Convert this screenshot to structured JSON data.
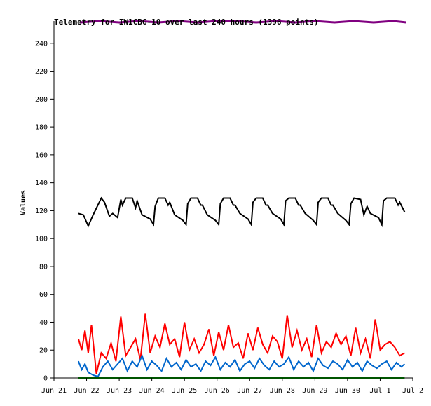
{
  "chart_data": {
    "type": "line",
    "title": "Telemetry for IW1CBG-10 over last 240 hours (1396 points)",
    "xlabel": "",
    "ylabel": "Values",
    "ylim": [
      0,
      256
    ],
    "yticks": [
      0,
      20,
      40,
      60,
      80,
      100,
      120,
      140,
      160,
      180,
      200,
      220,
      240
    ],
    "xlim": [
      0,
      11
    ],
    "xticks": [
      {
        "x": 0,
        "label": "Jun 21"
      },
      {
        "x": 1,
        "label": "Jun 22"
      },
      {
        "x": 2,
        "label": "Jun 23"
      },
      {
        "x": 3,
        "label": "Jun 24"
      },
      {
        "x": 4,
        "label": "Jun 25"
      },
      {
        "x": 5,
        "label": "Jun 26"
      },
      {
        "x": 6,
        "label": "Jun 27"
      },
      {
        "x": 7,
        "label": "Jun 28"
      },
      {
        "x": 8,
        "label": "Jun 29"
      },
      {
        "x": 9,
        "label": "Jun 30"
      },
      {
        "x": 10,
        "label": "Jul 1"
      },
      {
        "x": 11,
        "label": "Jul 2"
      }
    ],
    "grid": false,
    "series": [
      {
        "color": "#800080",
        "x": [
          0.8,
          1.4,
          2.0,
          2.6,
          3.2,
          3.8,
          4.4,
          5.0,
          5.6,
          6.2,
          6.8,
          7.4,
          8.0,
          8.6,
          9.2,
          9.8,
          10.4,
          10.8
        ],
        "values": [
          255,
          256,
          255,
          256,
          255,
          256,
          255,
          256,
          256,
          255,
          256,
          255,
          256,
          255,
          256,
          255,
          256,
          255
        ]
      },
      {
        "color": "#000000",
        "x": [
          0.75,
          0.9,
          1.05,
          1.2,
          1.45,
          1.55,
          1.7,
          1.8,
          1.95,
          2.05,
          2.1,
          2.2,
          2.4,
          2.5,
          2.55,
          2.7,
          2.95,
          3.05,
          3.1,
          3.2,
          3.4,
          3.5,
          3.55,
          3.7,
          3.95,
          4.05,
          4.1,
          4.2,
          4.4,
          4.5,
          4.55,
          4.7,
          4.95,
          5.05,
          5.1,
          5.2,
          5.4,
          5.5,
          5.55,
          5.7,
          5.95,
          6.05,
          6.1,
          6.2,
          6.4,
          6.5,
          6.55,
          6.7,
          6.95,
          7.05,
          7.1,
          7.2,
          7.4,
          7.5,
          7.55,
          7.7,
          7.95,
          8.05,
          8.1,
          8.2,
          8.4,
          8.5,
          8.55,
          8.7,
          8.95,
          9.05,
          9.1,
          9.2,
          9.4,
          9.5,
          9.6,
          9.7,
          9.95,
          10.05,
          10.1,
          10.2,
          10.45,
          10.55,
          10.6,
          10.75
        ],
        "values": [
          118,
          117,
          109,
          117,
          129,
          126,
          116,
          118,
          115,
          128,
          124,
          129,
          129,
          122,
          127,
          117,
          114,
          110,
          123,
          129,
          129,
          124,
          126,
          117,
          113,
          110,
          125,
          129,
          129,
          124,
          124,
          117,
          113,
          110,
          125,
          129,
          129,
          124,
          124,
          118,
          114,
          110,
          126,
          129,
          129,
          124,
          124,
          118,
          114,
          110,
          127,
          129,
          129,
          124,
          124,
          118,
          113,
          110,
          126,
          129,
          129,
          124,
          124,
          118,
          113,
          110,
          125,
          129,
          128,
          117,
          123,
          118,
          115,
          110,
          127,
          129,
          129,
          124,
          126,
          119
        ]
      },
      {
        "color": "#ff0000",
        "x": [
          0.75,
          0.85,
          0.95,
          1.05,
          1.15,
          1.3,
          1.45,
          1.6,
          1.75,
          1.9,
          2.05,
          2.2,
          2.35,
          2.5,
          2.65,
          2.8,
          2.95,
          3.1,
          3.25,
          3.4,
          3.55,
          3.7,
          3.85,
          4.0,
          4.15,
          4.3,
          4.45,
          4.6,
          4.75,
          4.9,
          5.05,
          5.2,
          5.35,
          5.5,
          5.65,
          5.8,
          5.95,
          6.1,
          6.25,
          6.4,
          6.55,
          6.7,
          6.85,
          7.0,
          7.15,
          7.3,
          7.45,
          7.6,
          7.75,
          7.9,
          8.05,
          8.2,
          8.35,
          8.5,
          8.65,
          8.8,
          8.95,
          9.1,
          9.25,
          9.4,
          9.55,
          9.7,
          9.85,
          10.0,
          10.15,
          10.3,
          10.45,
          10.6,
          10.75
        ],
        "values": [
          28,
          20,
          34,
          18,
          38,
          3,
          18,
          14,
          25,
          12,
          44,
          16,
          22,
          28,
          13,
          46,
          18,
          30,
          22,
          39,
          24,
          28,
          15,
          40,
          20,
          28,
          18,
          24,
          35,
          16,
          33,
          20,
          38,
          22,
          25,
          14,
          32,
          20,
          36,
          24,
          18,
          30,
          26,
          14,
          45,
          22,
          34,
          20,
          28,
          15,
          38,
          18,
          26,
          22,
          32,
          24,
          30,
          16,
          36,
          18,
          28,
          14,
          42,
          20,
          24,
          26,
          22,
          16,
          18
        ]
      },
      {
        "color": "#0066cc",
        "x": [
          0.75,
          0.85,
          0.95,
          1.05,
          1.2,
          1.35,
          1.5,
          1.65,
          1.8,
          1.95,
          2.1,
          2.25,
          2.4,
          2.55,
          2.7,
          2.85,
          3.0,
          3.15,
          3.3,
          3.45,
          3.6,
          3.75,
          3.9,
          4.05,
          4.2,
          4.35,
          4.5,
          4.65,
          4.8,
          4.95,
          5.1,
          5.25,
          5.4,
          5.55,
          5.7,
          5.85,
          6.0,
          6.15,
          6.3,
          6.45,
          6.6,
          6.75,
          6.9,
          7.05,
          7.2,
          7.35,
          7.5,
          7.65,
          7.8,
          7.95,
          8.1,
          8.25,
          8.4,
          8.55,
          8.7,
          8.85,
          9.0,
          9.15,
          9.3,
          9.45,
          9.6,
          9.75,
          9.9,
          10.05,
          10.2,
          10.35,
          10.5,
          10.65,
          10.75
        ],
        "values": [
          12,
          6,
          10,
          4,
          2,
          1,
          8,
          12,
          6,
          10,
          14,
          5,
          12,
          8,
          16,
          6,
          12,
          9,
          5,
          14,
          8,
          11,
          6,
          13,
          8,
          10,
          5,
          12,
          9,
          15,
          6,
          11,
          8,
          13,
          5,
          10,
          12,
          7,
          14,
          9,
          6,
          12,
          8,
          10,
          15,
          6,
          12,
          8,
          11,
          5,
          14,
          9,
          7,
          12,
          10,
          6,
          13,
          8,
          11,
          5,
          12,
          9,
          7,
          10,
          12,
          6,
          11,
          8,
          10
        ]
      },
      {
        "color": "#00aa00",
        "x": [
          0.75,
          10.75
        ],
        "values": [
          0,
          0
        ]
      }
    ]
  }
}
